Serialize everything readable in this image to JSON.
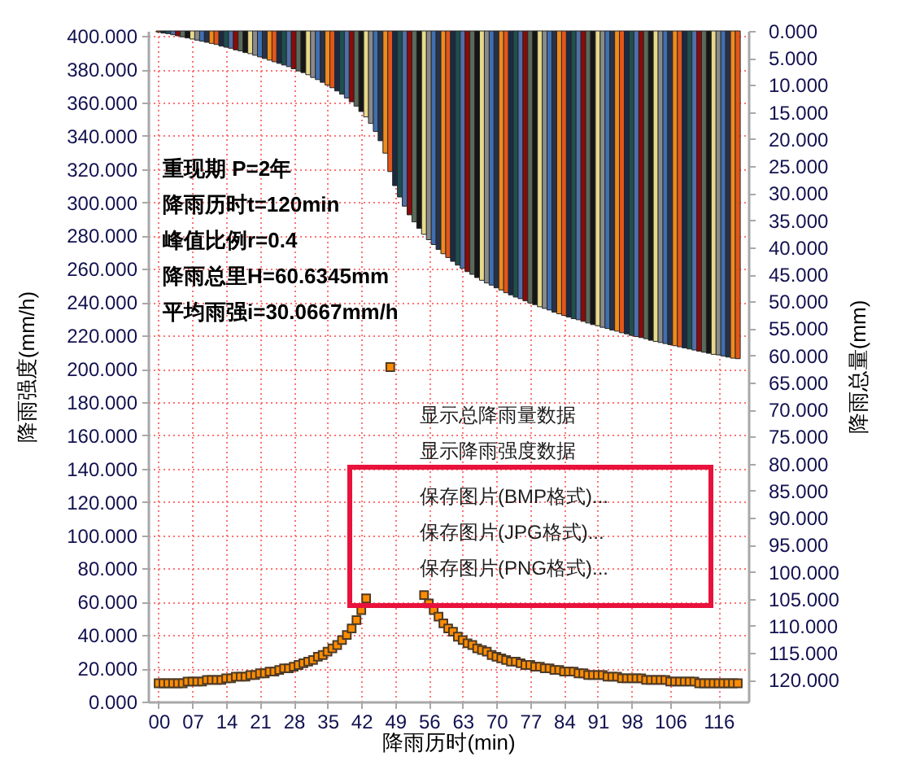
{
  "chart_data": {
    "type": "bar",
    "x": [
      0,
      1,
      2,
      3,
      4,
      5,
      6,
      7,
      8,
      9,
      10,
      11,
      12,
      13,
      14,
      15,
      16,
      17,
      18,
      19,
      20,
      21,
      22,
      23,
      24,
      25,
      26,
      27,
      28,
      29,
      30,
      31,
      32,
      33,
      34,
      35,
      36,
      37,
      38,
      39,
      40,
      41,
      42,
      43,
      44,
      45,
      46,
      47,
      48,
      49,
      50,
      51,
      52,
      53,
      54,
      55,
      56,
      57,
      58,
      59,
      60,
      61,
      62,
      63,
      64,
      65,
      66,
      67,
      68,
      69,
      70,
      71,
      72,
      73,
      74,
      75,
      76,
      77,
      78,
      79,
      80,
      81,
      82,
      83,
      84,
      85,
      86,
      87,
      88,
      89,
      90,
      91,
      92,
      93,
      94,
      95,
      96,
      97,
      98,
      99,
      100,
      101,
      102,
      103,
      104,
      105,
      106,
      107,
      108,
      109,
      110,
      111,
      112,
      113,
      114,
      115,
      116,
      117,
      118,
      119,
      120
    ],
    "xlim": [
      -0.5,
      120.5
    ],
    "xticks": [
      {
        "value": 0,
        "label": "00"
      },
      {
        "value": 7,
        "label": "07"
      },
      14,
      21,
      28,
      35,
      42,
      49,
      56,
      63,
      70,
      77,
      84,
      91,
      98,
      106,
      116
    ],
    "xlabel": "降雨历时(min)",
    "ylabel": "降雨强度(mm/h)",
    "y2label": "降雨总量(mm)",
    "ylim": [
      0,
      403
    ],
    "yticks": [
      {
        "value": 0,
        "label": "0.000"
      },
      {
        "value": 20,
        "label": "20.000"
      },
      {
        "value": 40,
        "label": "40.000"
      },
      {
        "value": 60,
        "label": "60.000"
      },
      {
        "value": 80,
        "label": "80.000"
      },
      {
        "value": 100,
        "label": "100.000"
      },
      {
        "value": 120,
        "label": "120.000"
      },
      {
        "value": 140,
        "label": "140.000"
      },
      {
        "value": 160,
        "label": "160.000"
      },
      {
        "value": 180,
        "label": "180.000"
      },
      {
        "value": 200,
        "label": "200.000"
      },
      {
        "value": 220,
        "label": "220.000"
      },
      {
        "value": 240,
        "label": "240.000"
      },
      {
        "value": 260,
        "label": "260.000"
      },
      {
        "value": 280,
        "label": "280.000"
      },
      {
        "value": 300,
        "label": "300.000"
      },
      {
        "value": 320,
        "label": "320.000"
      },
      {
        "value": 340,
        "label": "340.000"
      },
      {
        "value": 360,
        "label": "360.000"
      },
      {
        "value": 380,
        "label": "380.000"
      },
      {
        "value": 400,
        "label": "400.000"
      }
    ],
    "y2lim": [
      124,
      0
    ],
    "y2ticks": [
      {
        "value": 0,
        "label": "0.000"
      },
      {
        "value": 5,
        "label": "5.000"
      },
      {
        "value": 10,
        "label": "10.000"
      },
      {
        "value": 15,
        "label": "15.000"
      },
      {
        "value": 20,
        "label": "20.000"
      },
      {
        "value": 25,
        "label": "25.000"
      },
      {
        "value": 30,
        "label": "30.000"
      },
      {
        "value": 35,
        "label": "35.000"
      },
      {
        "value": 40,
        "label": "40.000"
      },
      {
        "value": 45,
        "label": "45.000"
      },
      {
        "value": 50,
        "label": "50.000"
      },
      {
        "value": 55,
        "label": "55.000"
      },
      {
        "value": 60,
        "label": "60.000"
      },
      {
        "value": 65,
        "label": "65.000"
      },
      {
        "value": 70,
        "label": "70.000"
      },
      {
        "value": 75,
        "label": "75.000"
      },
      {
        "value": 80,
        "label": "80.000"
      },
      {
        "value": 85,
        "label": "85.000"
      },
      {
        "value": 90,
        "label": "90.000"
      },
      {
        "value": 95,
        "label": "95.000"
      },
      {
        "value": 100,
        "label": "100.000"
      },
      {
        "value": 105,
        "label": "105.000"
      },
      {
        "value": 110,
        "label": "110.000"
      },
      {
        "value": 115,
        "label": "115.000"
      },
      {
        "value": 120,
        "label": "120.000"
      }
    ],
    "grid": true,
    "marker": "square",
    "series": [
      {
        "axis": "y2",
        "colors": [
          "#e2561a",
          "#1b2a44",
          "#1f4f4f",
          "#4f6fa8",
          "#8b0a0a",
          "#5a6a5a",
          "#151515",
          "#e6d98a",
          "#8a8a8a",
          "#3f6fb0",
          "#26324a",
          "#f08a1c",
          "#e2561a",
          "#1b2a44",
          "#1f4f4f",
          "#4f6fa8",
          "#8b0a0a",
          "#5a6a5a",
          "#151515",
          "#e6d98a",
          "#8a8a8a",
          "#3f6fb0",
          "#26324a",
          "#f08a1c",
          "#e2561a",
          "#1b2a44",
          "#1f4f4f",
          "#4f6fa8",
          "#8b0a0a",
          "#5a6a5a",
          "#151515",
          "#e6d98a",
          "#8a8a8a",
          "#3f6fb0",
          "#26324a",
          "#f08a1c",
          "#e2561a",
          "#1b2a44",
          "#1f4f4f",
          "#4f6fa8",
          "#8b0a0a",
          "#5a6a5a",
          "#151515",
          "#e6d98a",
          "#8a8a8a",
          "#3f6fb0",
          "#26324a",
          "#f08a1c",
          "#e2561a",
          "#1b2a44",
          "#1f4f4f",
          "#4f6fa8",
          "#8b0a0a",
          "#5a6a5a",
          "#151515",
          "#e6d98a",
          "#8a8a8a",
          "#3f6fb0",
          "#26324a",
          "#f08a1c",
          "#e2561a",
          "#1b2a44",
          "#1f4f4f",
          "#4f6fa8",
          "#8b0a0a",
          "#5a6a5a",
          "#151515",
          "#e6d98a",
          "#8a8a8a",
          "#3f6fb0",
          "#26324a",
          "#f08a1c",
          "#e2561a",
          "#1b2a44",
          "#1f4f4f",
          "#4f6fa8",
          "#8b0a0a",
          "#5a6a5a",
          "#151515",
          "#e6d98a",
          "#8a8a8a",
          "#3f6fb0",
          "#26324a",
          "#f08a1c",
          "#e2561a",
          "#1b2a44",
          "#1f4f4f",
          "#4f6fa8",
          "#8b0a0a",
          "#5a6a5a",
          "#151515",
          "#e6d98a",
          "#8a8a8a",
          "#3f6fb0",
          "#26324a",
          "#f08a1c",
          "#e2561a",
          "#1b2a44",
          "#1f4f4f",
          "#4f6fa8",
          "#8b0a0a",
          "#5a6a5a",
          "#151515",
          "#e6d98a",
          "#8a8a8a",
          "#3f6fb0",
          "#26324a",
          "#f08a1c",
          "#e2561a",
          "#1b2a44",
          "#1f4f4f",
          "#4f6fa8",
          "#8b0a0a",
          "#5a6a5a",
          "#151515",
          "#e6d98a",
          "#8a8a8a",
          "#3f6fb0",
          "#26324a",
          "#f08a1c",
          "#e2561a"
        ],
        "values": [
          0.2,
          0.4,
          0.5,
          0.7,
          0.9,
          1.1,
          1.3,
          1.5,
          1.7,
          1.9,
          2.1,
          2.3,
          2.5,
          2.8,
          3.0,
          3.2,
          3.5,
          3.7,
          4.0,
          4.2,
          4.5,
          4.8,
          5.1,
          5.4,
          5.7,
          6.0,
          6.3,
          6.6,
          7.0,
          7.4,
          7.7,
          8.1,
          8.6,
          9.0,
          9.5,
          10.0,
          10.5,
          11.1,
          11.7,
          12.4,
          13.1,
          13.9,
          14.9,
          15.9,
          17.1,
          18.6,
          20.3,
          22.6,
          26.0,
          28.6,
          30.7,
          32.4,
          34.0,
          35.3,
          36.5,
          37.6,
          38.6,
          39.5,
          40.4,
          41.2,
          41.9,
          42.6,
          43.3,
          43.9,
          44.5,
          45.0,
          45.6,
          46.1,
          46.6,
          47.0,
          47.5,
          47.9,
          48.4,
          48.8,
          49.2,
          49.5,
          49.9,
          50.3,
          50.6,
          51.0,
          51.3,
          51.6,
          52.0,
          52.3,
          52.6,
          52.9,
          53.2,
          53.4,
          53.7,
          54.0,
          54.3,
          54.5,
          54.8,
          55.0,
          55.3,
          55.5,
          55.8,
          56.0,
          56.3,
          56.5,
          56.7,
          56.9,
          57.2,
          57.4,
          57.6,
          57.8,
          58.0,
          58.2,
          58.4,
          58.6,
          58.8,
          59.0,
          59.2,
          59.4,
          59.6,
          59.8,
          59.9,
          60.1,
          60.3,
          60.5,
          60.6
        ]
      },
      {
        "type": "line",
        "color": "#ff8c00",
        "values": [
          11,
          11,
          11,
          11,
          11,
          11,
          12,
          12,
          12,
          12,
          13,
          13,
          13,
          13,
          14,
          14,
          15,
          15,
          15,
          16,
          16,
          17,
          17,
          18,
          18,
          19,
          20,
          20,
          21,
          22,
          23,
          24,
          25,
          27,
          28,
          30,
          32,
          34,
          37,
          40,
          44,
          49,
          55,
          62,
          null,
          null,
          null,
          null,
          201,
          null,
          null,
          null,
          null,
          null,
          null,
          64,
          59,
          55,
          51,
          47,
          44,
          42,
          39,
          37,
          35,
          34,
          32,
          31,
          30,
          28,
          27,
          26,
          25,
          24,
          24,
          23,
          22,
          22,
          21,
          21,
          20,
          20,
          19,
          19,
          18,
          18,
          18,
          17,
          17,
          16,
          16,
          16,
          16,
          15,
          15,
          15,
          14,
          14,
          14,
          14,
          14,
          13,
          13,
          13,
          13,
          13,
          12,
          12,
          12,
          12,
          12,
          12,
          11,
          11,
          11,
          11,
          11,
          11,
          11,
          11,
          11
        ]
      }
    ],
    "annotations": [
      "重现期  P=2年",
      "降雨历时t=120min",
      "峰值比例r=0.4",
      "降雨总里H=60.6345mm",
      "平均雨强i=30.0667mm/h",
      "显示总降雨量数据",
      "显示降雨强度数据",
      "保存图片(BMP格式)...",
      "保存图片(JPG格式)...",
      "保存图片(PNG格式)..."
    ]
  }
}
